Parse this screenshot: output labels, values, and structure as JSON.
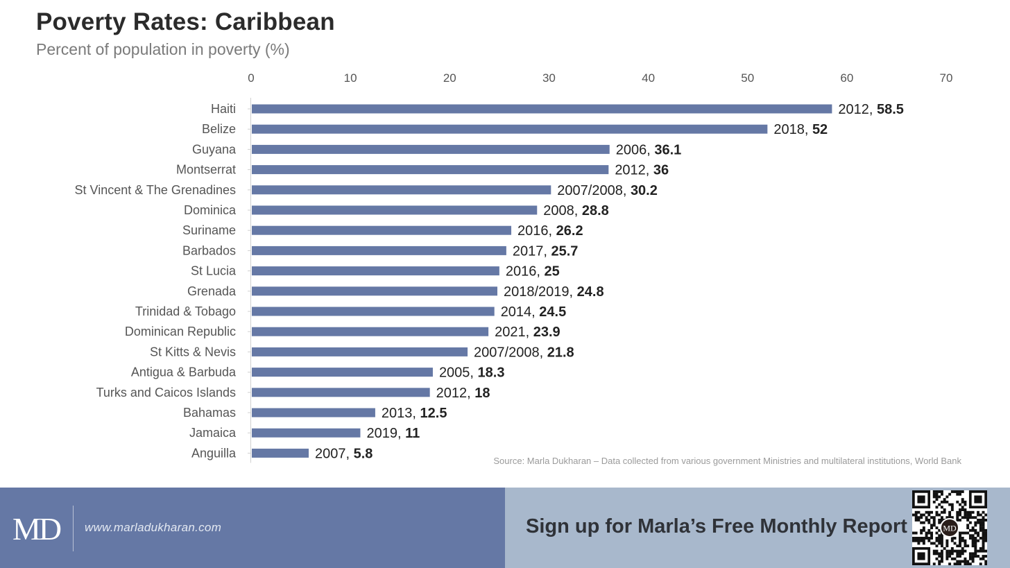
{
  "header": {
    "title": "Poverty Rates: Caribbean",
    "subtitle": "Percent of population in poverty (%)"
  },
  "chart_data": {
    "type": "bar",
    "orientation": "horizontal",
    "title": "Poverty Rates: Caribbean",
    "subtitle": "Percent of population in poverty (%)",
    "xlim": [
      0,
      70
    ],
    "x_ticks": [
      0,
      10,
      20,
      30,
      40,
      50,
      60,
      70
    ],
    "axis_position": "top",
    "grid": false,
    "bar_color": "#6578a5",
    "categories": [
      "Haiti",
      "Belize",
      "Guyana",
      "Montserrat",
      "St Vincent & The Grenadines",
      "Dominica",
      "Suriname",
      "Barbados",
      "St Lucia",
      "Grenada",
      "Trinidad & Tobago",
      "Dominican Republic",
      "St Kitts & Nevis",
      "Antigua & Barbuda",
      "Turks and Caicos Islands",
      "Bahamas",
      "Jamaica",
      "Anguilla"
    ],
    "values": [
      58.5,
      52,
      36.1,
      36,
      30.2,
      28.8,
      26.2,
      25.7,
      25,
      24.8,
      24.5,
      23.9,
      21.8,
      18.3,
      18,
      12.5,
      11,
      5.8
    ],
    "years": [
      "2012",
      "2018",
      "2006",
      "2012",
      "2007/2008",
      "2008",
      "2016",
      "2017",
      "2016",
      "2018/2019",
      "2014",
      "2021",
      "2007/2008",
      "2005",
      "2012",
      "2013",
      "2019",
      "2007"
    ],
    "value_labels": [
      "58.5",
      "52",
      "36.1",
      "36",
      "30.2",
      "28.8",
      "26.2",
      "25.7",
      "25",
      "24.8",
      "24.5",
      "23.9",
      "21.8",
      "18.3",
      "18",
      "12.5",
      "11",
      "5.8"
    ]
  },
  "source": "Source: Marla Dukharan – Data collected from various government Ministries and multilateral institutions, World Bank",
  "footer": {
    "logo": "MD",
    "website": "www.marladukharan.com",
    "cta": "Sign up for Marla’s Free Monthly Report",
    "qr_center": "MD",
    "left_color": "#6578a5",
    "right_color": "#a8b8cc"
  }
}
